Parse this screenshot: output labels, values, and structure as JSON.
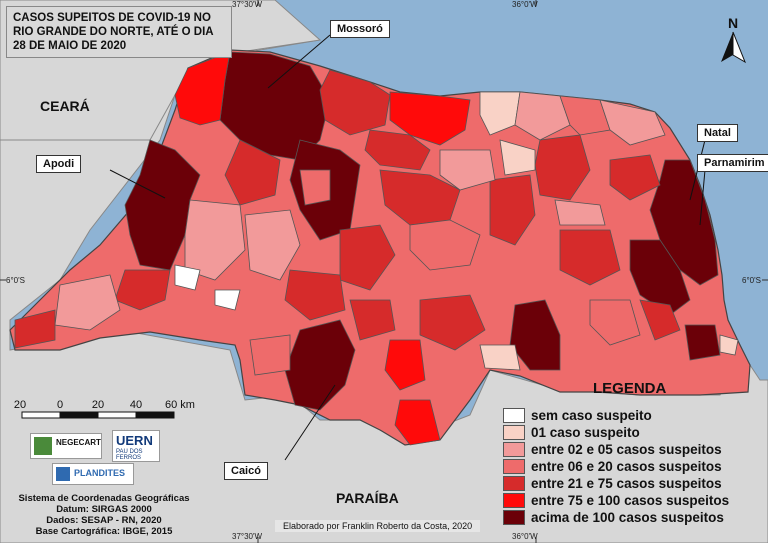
{
  "title": "CASOS SUPEITOS DE COVID-19 NO RIO GRANDE DO NORTE, ATÉ O DIA 28 DE MAIO DE 2020",
  "coordinates": {
    "top_left": "37°30'W",
    "top_right": "36°0'W",
    "bottom_left": "37°30'W",
    "bottom_right": "36°0'W",
    "left": "6°0'S",
    "right": "6°0'S"
  },
  "neighbors": {
    "west": "CEARÁ",
    "south": "PARAÍBA"
  },
  "places": {
    "mossoro": "Mossoró",
    "apodi": "Apodi",
    "natal": "Natal",
    "parnamirim": "Parnamirim",
    "caico": "Caicó"
  },
  "north_arrow": "N",
  "scale": {
    "labels": [
      "20",
      "0",
      "20",
      "40",
      "60 km"
    ]
  },
  "legend": {
    "title": "LEGENDA",
    "items": [
      {
        "label": "sem caso suspeito",
        "color": "#ffffff"
      },
      {
        "label": "01 caso suspeito",
        "color": "#f9d2c6"
      },
      {
        "label": "entre 02 e 05 casos suspeitos",
        "color": "#f29a9a"
      },
      {
        "label": "entre 06 e 20 casos suspeitos",
        "color": "#ee6b6b"
      },
      {
        "label": "entre 21 e 75 casos suspeitos",
        "color": "#d62b2b"
      },
      {
        "label": "entre 75 e 100 casos suspeitos",
        "color": "#ff0a0a"
      },
      {
        "label": "acima de 100 casos suspeitos",
        "color": "#6b0008"
      }
    ]
  },
  "logos": {
    "negecart": "NEGECART",
    "uern": "UERN",
    "uern_sub": "PAU DOS FERROS",
    "plandites": "PLANDITES"
  },
  "footer": {
    "line1": "Sistema de Coordenadas Geográficas",
    "line2": "Datum: SIRGAS 2000",
    "line3": "Dados: SESAP - RN, 2020",
    "line4": "Base Cartográfica: IBGE, 2015"
  },
  "credit": "Elaborado por Franklin Roberto da Costa, 2020",
  "colors": {
    "sea": "#8eb3d4",
    "land": "#d9d9d9",
    "border": "#555555"
  }
}
